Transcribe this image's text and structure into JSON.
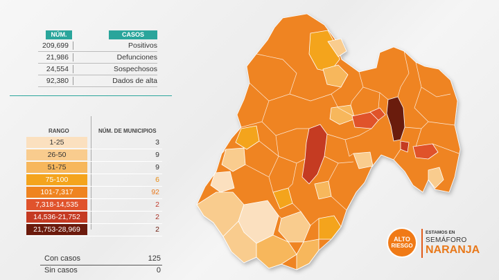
{
  "summary": {
    "header_num": "NÚM.",
    "header_casos": "CASOS",
    "rows": [
      {
        "num": "209,699",
        "label": "Positivos"
      },
      {
        "num": "21,986",
        "label": "Defunciones"
      },
      {
        "num": "24,554",
        "label": "Sospechosos"
      },
      {
        "num": "92,380",
        "label": "Dados de alta"
      }
    ]
  },
  "legend": {
    "header_rango": "RANGO",
    "header_municipios": "NÚM. DE MUNICIPIOS",
    "rows": [
      {
        "range": "1-25",
        "count": "3",
        "color": "#fbe0bf",
        "text_color": "#333333",
        "count_color": "#333333"
      },
      {
        "range": "26-50",
        "count": "9",
        "color": "#f9cc8e",
        "text_color": "#333333",
        "count_color": "#333333"
      },
      {
        "range": "51-75",
        "count": "9",
        "color": "#f7b75c",
        "text_color": "#333333",
        "count_color": "#333333"
      },
      {
        "range": "75-100",
        "count": "6",
        "color": "#f4a41d",
        "text_color": "#ffffff",
        "count_color": "#e88a10"
      },
      {
        "range": "101-7,317",
        "count": "92",
        "color": "#ef8420",
        "text_color": "#ffffff",
        "count_color": "#e8781a"
      },
      {
        "range": "7,318-14,535",
        "count": "2",
        "color": "#e0532c",
        "text_color": "#ffffff",
        "count_color": "#c0392b"
      },
      {
        "range": "14,536-21,752",
        "count": "2",
        "color": "#c53a22",
        "text_color": "#ffffff",
        "count_color": "#a93226"
      },
      {
        "range": "21,753-28,969",
        "count": "2",
        "color": "#6b1a0c",
        "text_color": "#ffffff",
        "count_color": "#6b1a0c"
      }
    ]
  },
  "totals": [
    {
      "label": "Con casos",
      "value": "125"
    },
    {
      "label": "Sin casos",
      "value": "0"
    }
  ],
  "badge": {
    "circle_line1": "ALTO",
    "circle_line2": "RIESGO",
    "line1": "ESTAMOS EN",
    "line2": "SEMÁFORO",
    "line3": "NARANJA"
  }
}
